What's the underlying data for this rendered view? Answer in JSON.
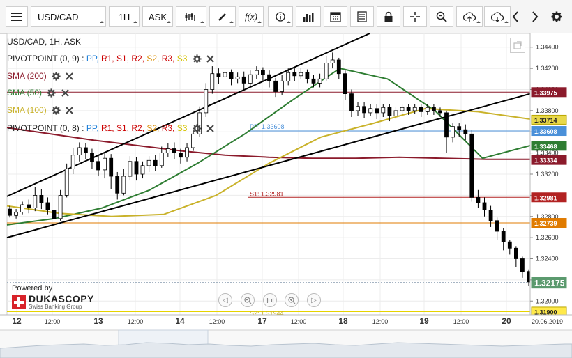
{
  "toolbar": {
    "symbol": "USD/CAD",
    "timeframe": "1H",
    "price_type": "ASK",
    "buttons": [
      "menu-icon",
      "chart-type-icon",
      "draw-icon",
      "fx-icon",
      "info-icon",
      "volume-icon",
      "calendar-icon",
      "report-icon",
      "lock-icon",
      "crosshair-icon",
      "zoom-icon",
      "upload-icon",
      "download-icon",
      "prev-icon",
      "next-icon",
      "settings-icon"
    ]
  },
  "legend": {
    "title": "USD/CAD, 1H, ASK",
    "pivot1_name": "PIVOTPOINT (0, 9)",
    "pivot2_name": "PIVOTPOINT (0, 8)",
    "pivot_sep": ":",
    "pivot_levels": [
      "PP,",
      "R1,",
      "S1,",
      "R2,",
      "S2,",
      "R3,",
      "S3"
    ],
    "pivot_level_colors": [
      "#1e7fd8",
      "#cc0000",
      "#cc0000",
      "#cc0000",
      "#d98c00",
      "#cc0000",
      "#d4c200"
    ],
    "sma200": "SMA (200)",
    "sma50": "SMA (50)",
    "sma100": "SMA (100)"
  },
  "branding": {
    "powered_by": "Powered by",
    "brand": "DUKASCOPY",
    "sub": "Swiss Banking Group"
  },
  "colors": {
    "sma200": "#8b1a2b",
    "sma50": "#2e7d32",
    "sma100": "#c9b22a",
    "trendline": "#000000",
    "pp": "#4a90d9",
    "s1": "#b22222",
    "orange": "#e07b00",
    "yellow": "#e6d300",
    "up": "#ffffff",
    "down": "#000000",
    "price_bg": "#5b9a6e"
  },
  "chart_data": {
    "type": "candlestick",
    "symbol": "USD/CAD",
    "timeframe": "1H",
    "y_ticks": [
      1.344,
      1.342,
      1.34,
      1.338,
      1.336,
      1.334,
      1.332,
      1.33,
      1.328,
      1.326,
      1.324,
      1.322,
      1.32
    ],
    "y_tick_labels": [
      "1.34400",
      "1.34200",
      "1.34000",
      "1.33800",
      "1.33600",
      "1.33400",
      "1.33200",
      "1.33000",
      "1.32800",
      "1.32600",
      "1.32400",
      "1.32200",
      "1.32000"
    ],
    "ylim": [
      1.3187,
      1.3453
    ],
    "x_labels": [
      "12",
      "12:00",
      "13",
      "12:00",
      "14",
      "12:00",
      "17",
      "12:00",
      "18",
      "12:00",
      "19",
      "12:00",
      "20"
    ],
    "x_label_bold": [
      true,
      false,
      true,
      false,
      true,
      false,
      true,
      false,
      true,
      false,
      true,
      false,
      true
    ],
    "date_label": "20.06.2019",
    "pivot_lines": [
      {
        "label": "PP: 1.33608",
        "value": 1.33608,
        "badge": "1.33608"
      },
      {
        "label": "S1: 1.32981",
        "value": 1.32981,
        "badge": "1.32981"
      },
      {
        "label": "S2: 1.31944",
        "value": 1.31944
      }
    ],
    "price_badges": [
      {
        "value": 1.33975,
        "text": "1.33975"
      },
      {
        "value": 1.33714,
        "text": "1.33714"
      },
      {
        "value": 1.33608,
        "text": "1.33608"
      },
      {
        "value": 1.33468,
        "text": "1.33468"
      },
      {
        "value": 1.33334,
        "text": "1.33334"
      },
      {
        "value": 1.32981,
        "text": "1.32981"
      },
      {
        "value": 1.32739,
        "text": "1.32739"
      },
      {
        "value": 1.32175,
        "text": "1.32175"
      },
      {
        "value": 1.319,
        "text": "1.31900"
      }
    ],
    "horizontal_lines": [
      1.33975,
      1.32739,
      1.319
    ],
    "last_price": 1.32175,
    "series": [
      {
        "name": "SMA (200)",
        "values": [
          1.3364,
          1.3358,
          1.3352,
          1.3347,
          1.3342,
          1.3338,
          1.3336,
          1.3335,
          1.3335,
          1.3336,
          1.3335,
          1.3334,
          1.3334
        ]
      },
      {
        "name": "SMA (50)",
        "values": [
          1.3272,
          1.3278,
          1.3288,
          1.3305,
          1.333,
          1.3358,
          1.339,
          1.342,
          1.341,
          1.338,
          1.3335,
          1.3347
        ]
      },
      {
        "name": "SMA (100)",
        "values": [
          1.329,
          1.3283,
          1.328,
          1.3282,
          1.33,
          1.333,
          1.3355,
          1.3368,
          1.3382,
          1.3379,
          1.3372
        ]
      }
    ],
    "candles": [
      [
        1.3287,
        1.3281,
        1.329,
        1.3279
      ],
      [
        1.3281,
        1.3284,
        1.3287,
        1.3278
      ],
      [
        1.3284,
        1.3291,
        1.3294,
        1.3282
      ],
      [
        1.3291,
        1.3288,
        1.3296,
        1.3283
      ],
      [
        1.3288,
        1.33,
        1.3308,
        1.3285
      ],
      [
        1.33,
        1.3293,
        1.3306,
        1.3287
      ],
      [
        1.3293,
        1.3286,
        1.3298,
        1.3282
      ],
      [
        1.3286,
        1.3278,
        1.329,
        1.3272
      ],
      [
        1.3278,
        1.33,
        1.3305,
        1.3276
      ],
      [
        1.33,
        1.3325,
        1.333,
        1.3298
      ],
      [
        1.3325,
        1.3338,
        1.3345,
        1.332
      ],
      [
        1.3338,
        1.3345,
        1.335,
        1.3332
      ],
      [
        1.3345,
        1.334,
        1.3349,
        1.3334
      ],
      [
        1.334,
        1.3332,
        1.3344,
        1.3325
      ],
      [
        1.3332,
        1.3324,
        1.3338,
        1.3318
      ],
      [
        1.3324,
        1.3335,
        1.334,
        1.3316
      ],
      [
        1.3335,
        1.3318,
        1.3339,
        1.3306
      ],
      [
        1.3318,
        1.3302,
        1.3322,
        1.3296
      ],
      [
        1.3302,
        1.3318,
        1.3325,
        1.33
      ],
      [
        1.3318,
        1.3332,
        1.3337,
        1.3314
      ],
      [
        1.3332,
        1.332,
        1.3336,
        1.3314
      ],
      [
        1.332,
        1.3328,
        1.3332,
        1.3316
      ],
      [
        1.3328,
        1.3333,
        1.3337,
        1.3322
      ],
      [
        1.3333,
        1.3328,
        1.3338,
        1.3323
      ],
      [
        1.3328,
        1.334,
        1.3346,
        1.3326
      ],
      [
        1.334,
        1.3344,
        1.3349,
        1.3336
      ],
      [
        1.3344,
        1.334,
        1.335,
        1.3334
      ],
      [
        1.334,
        1.3336,
        1.3344,
        1.333
      ],
      [
        1.3336,
        1.3345,
        1.3349,
        1.3332
      ],
      [
        1.3345,
        1.3358,
        1.3362,
        1.3342
      ],
      [
        1.3358,
        1.3378,
        1.3384,
        1.3355
      ],
      [
        1.3378,
        1.34,
        1.3406,
        1.3374
      ],
      [
        1.34,
        1.3415,
        1.3422,
        1.3396
      ],
      [
        1.3415,
        1.3412,
        1.342,
        1.3405
      ],
      [
        1.3412,
        1.3416,
        1.342,
        1.3406
      ],
      [
        1.3416,
        1.341,
        1.3419,
        1.3404
      ],
      [
        1.341,
        1.3412,
        1.3416,
        1.3406
      ],
      [
        1.3412,
        1.3406,
        1.3417,
        1.34
      ],
      [
        1.3406,
        1.3414,
        1.3418,
        1.3402
      ],
      [
        1.3414,
        1.3418,
        1.3422,
        1.341
      ],
      [
        1.3418,
        1.3414,
        1.3421,
        1.3408
      ],
      [
        1.3414,
        1.3408,
        1.3418,
        1.3402
      ],
      [
        1.3408,
        1.3398,
        1.3411,
        1.3393
      ],
      [
        1.3398,
        1.3408,
        1.3414,
        1.3395
      ],
      [
        1.3408,
        1.3416,
        1.342,
        1.3404
      ],
      [
        1.3416,
        1.3413,
        1.342,
        1.3408
      ],
      [
        1.3413,
        1.3416,
        1.342,
        1.341
      ],
      [
        1.3416,
        1.341,
        1.3419,
        1.3406
      ],
      [
        1.341,
        1.3406,
        1.3414,
        1.3402
      ],
      [
        1.3406,
        1.341,
        1.3415,
        1.3402
      ],
      [
        1.341,
        1.3425,
        1.3432,
        1.3408
      ],
      [
        1.3425,
        1.3428,
        1.3435,
        1.342
      ],
      [
        1.3428,
        1.3415,
        1.343,
        1.341
      ],
      [
        1.3415,
        1.3396,
        1.3418,
        1.339
      ],
      [
        1.3396,
        1.338,
        1.34,
        1.3374
      ],
      [
        1.338,
        1.3384,
        1.3388,
        1.3375
      ],
      [
        1.3384,
        1.3378,
        1.3388,
        1.3373
      ],
      [
        1.3378,
        1.3382,
        1.3386,
        1.3375
      ],
      [
        1.3382,
        1.3378,
        1.3386,
        1.3372
      ],
      [
        1.3378,
        1.3383,
        1.3386,
        1.3374
      ],
      [
        1.3383,
        1.3375,
        1.3386,
        1.337
      ],
      [
        1.3375,
        1.338,
        1.3384,
        1.3372
      ],
      [
        1.338,
        1.3383,
        1.3386,
        1.3376
      ],
      [
        1.3383,
        1.338,
        1.3386,
        1.3376
      ],
      [
        1.338,
        1.3383,
        1.3386,
        1.3377
      ],
      [
        1.3383,
        1.3379,
        1.3386,
        1.3374
      ],
      [
        1.3379,
        1.3383,
        1.3386,
        1.3376
      ],
      [
        1.3383,
        1.338,
        1.3386,
        1.3376
      ],
      [
        1.338,
        1.3378,
        1.3383,
        1.3374
      ],
      [
        1.3378,
        1.3355,
        1.338,
        1.334
      ],
      [
        1.3355,
        1.3365,
        1.3368,
        1.335
      ],
      [
        1.3365,
        1.3362,
        1.3368,
        1.3355
      ],
      [
        1.3362,
        1.3358,
        1.3367,
        1.3352
      ],
      [
        1.3358,
        1.3298,
        1.3362,
        1.3294
      ],
      [
        1.3298,
        1.3293,
        1.3305,
        1.3288
      ],
      [
        1.3293,
        1.3286,
        1.3298,
        1.328
      ],
      [
        1.3286,
        1.3276,
        1.329,
        1.327
      ],
      [
        1.3276,
        1.3266,
        1.3279,
        1.3258
      ],
      [
        1.3266,
        1.3256,
        1.3269,
        1.3248
      ],
      [
        1.3256,
        1.325,
        1.3258,
        1.3244
      ],
      [
        1.325,
        1.324,
        1.3252,
        1.3232
      ],
      [
        1.324,
        1.3228,
        1.3242,
        1.3222
      ],
      [
        1.3228,
        1.3218,
        1.323,
        1.3214
      ]
    ]
  }
}
